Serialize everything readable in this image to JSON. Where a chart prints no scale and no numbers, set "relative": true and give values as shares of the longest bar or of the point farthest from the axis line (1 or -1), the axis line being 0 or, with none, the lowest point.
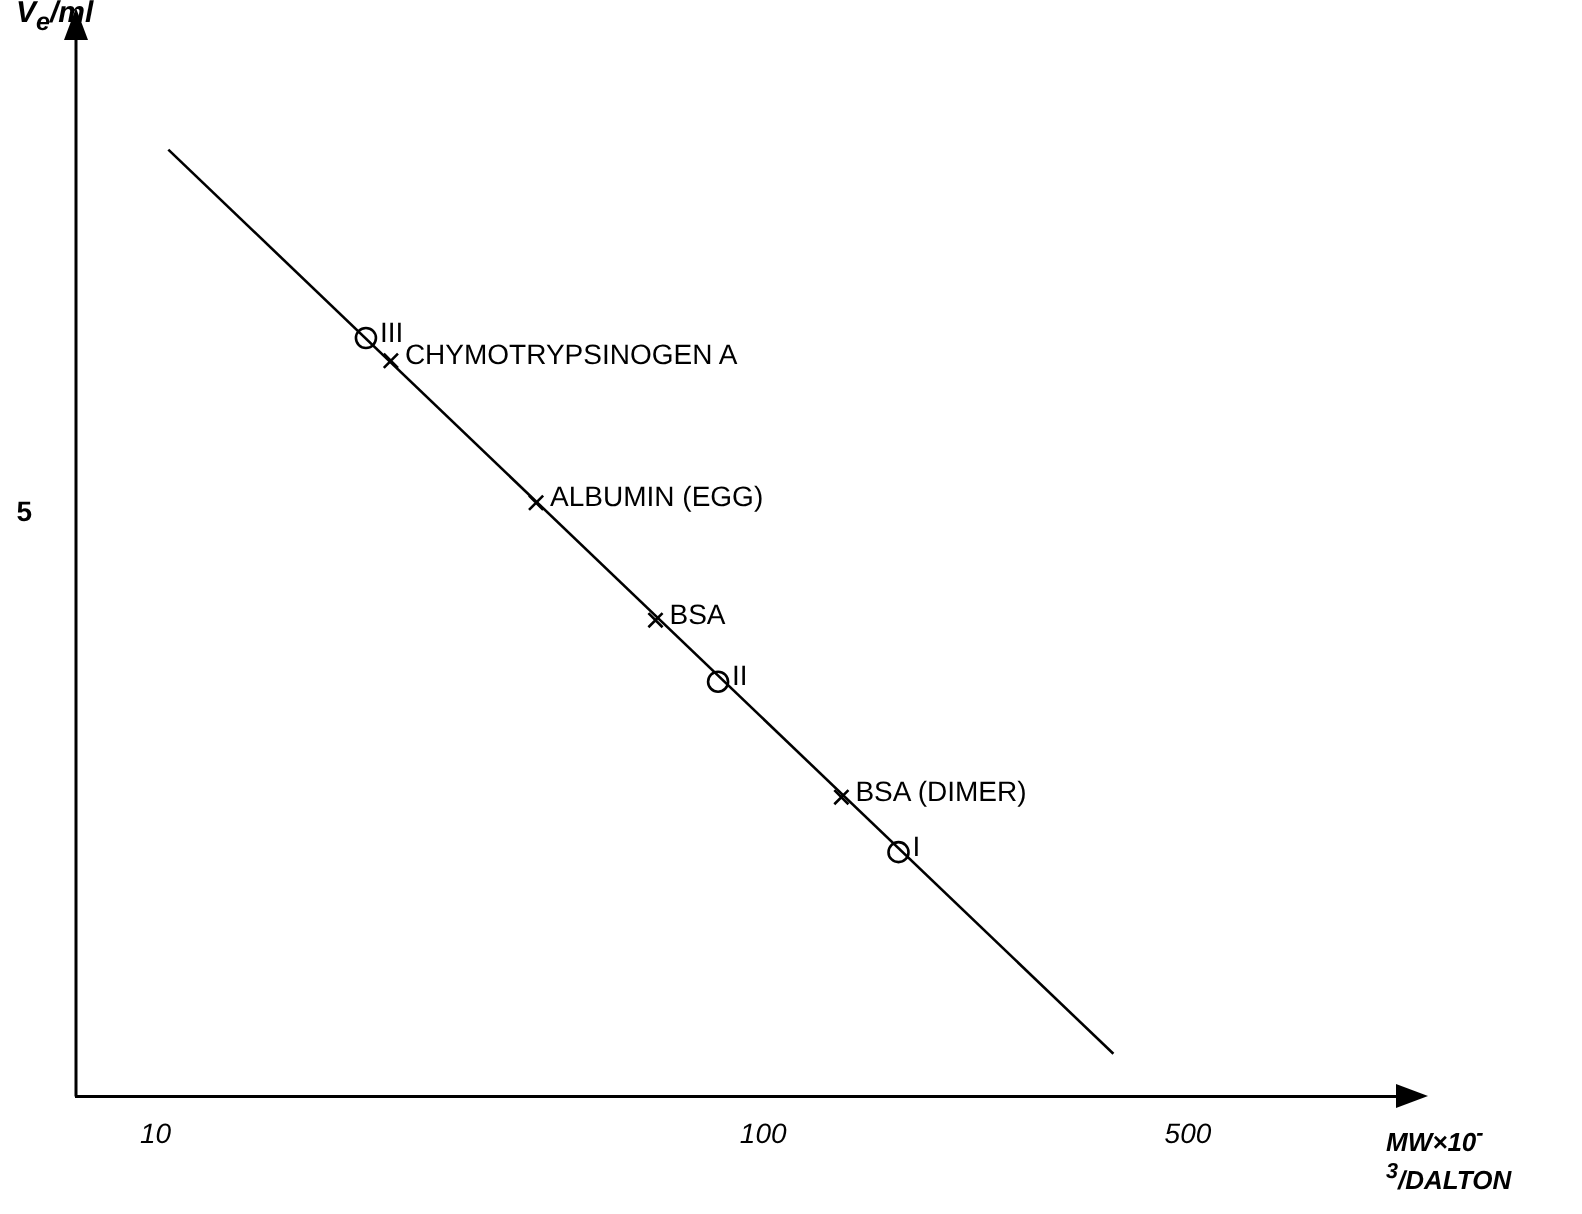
{
  "chart_data": {
    "type": "scatter",
    "relative": true,
    "log": "x",
    "xlim": [
      7.4,
      1100
    ],
    "xticks": [
      10,
      100,
      500
    ],
    "xlabel": "MW×10$^{-3}$/DALTON",
    "ylabel": "V$_{e}$/ml",
    "series": [
      {
        "type": "line",
        "color": "#000000",
        "x": [
          10.5,
          377
        ],
        "values": [
          1,
          0.045
        ],
        "marker": "none",
        "line_style": "solid"
      },
      {
        "color": "#000000",
        "marker": "cross",
        "x": [
          24.4,
          42.3,
          66.5,
          134.5
        ],
        "values": [
          0.777,
          0.627,
          0.503,
          0.316
        ]
      },
      {
        "color": "#000000",
        "marker": "circle",
        "x": [
          22.2,
          84.3,
          167
        ],
        "values": [
          0.801,
          0.438,
          0.258
        ]
      }
    ],
    "annotations": [
      "5",
      {
        "text": "III",
        "x": 22.2,
        "y": 0.801
      },
      {
        "text": "CHYMOTRYPSINOGEN A",
        "x": 24.4,
        "y": 0.777
      },
      {
        "text": "ALBUMIN (EGG)",
        "x": 42.3,
        "y": 0.627
      },
      {
        "text": "BSA",
        "x": 66.5,
        "y": 0.503
      },
      {
        "text": "II",
        "x": 84.3,
        "y": 0.438
      },
      {
        "text": "BSA (DIMER)",
        "x": 134.5,
        "y": 0.316
      },
      {
        "text": "I",
        "x": 167,
        "y": 0.258
      }
    ]
  }
}
